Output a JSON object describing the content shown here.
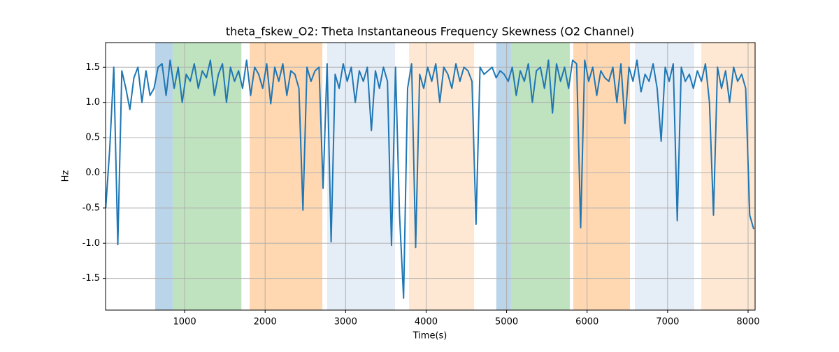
{
  "chart_data": {
    "type": "line",
    "title": "theta_fskew_O2: Theta Instantaneous Frequency Skewness (O2 Channel)",
    "x_label": "Time(s)",
    "y_label": "Hz",
    "xlim": [
      18,
      8087
    ],
    "ylim": [
      -1.95,
      1.85
    ],
    "xticks": [
      1000,
      2000,
      3000,
      4000,
      5000,
      6000,
      7000,
      8000
    ],
    "yticks": [
      -1.5,
      {
        "value": -1,
        "label": "-1.0"
      },
      -0.5,
      {
        "value": 0,
        "label": "0.0"
      },
      0.5,
      {
        "value": 1,
        "label": "1.0"
      },
      1.5
    ],
    "grid": true,
    "spans": [
      {
        "x": [
          635,
          852
        ],
        "color": "#bad4e9"
      },
      {
        "x": [
          852,
          1705
        ],
        "color": "#c0e3bf"
      },
      {
        "x": [
          1808,
          2711
        ],
        "color": "#ffd7b1"
      },
      {
        "x": [
          2771,
          3614
        ],
        "color": "#e5edf7"
      },
      {
        "x": [
          3788,
          4596
        ],
        "color": "#ffe8d3"
      },
      {
        "x": [
          4872,
          5055
        ],
        "color": "#bad4e9"
      },
      {
        "x": [
          5055,
          5785
        ],
        "color": "#c0e3bf"
      },
      {
        "x": [
          5829,
          6532
        ],
        "color": "#ffd7b1"
      },
      {
        "x": [
          6593,
          7331
        ],
        "color": "#e5edf7"
      },
      {
        "x": [
          7418,
          8087
        ],
        "color": "#ffe8d3"
      }
    ],
    "x": [
      20,
      70,
      120,
      170,
      220,
      270,
      320,
      370,
      420,
      470,
      520,
      570,
      620,
      670,
      720,
      770,
      820,
      870,
      920,
      970,
      1020,
      1070,
      1120,
      1170,
      1220,
      1270,
      1320,
      1370,
      1420,
      1470,
      1520,
      1570,
      1620,
      1670,
      1720,
      1770,
      1820,
      1870,
      1920,
      1970,
      2020,
      2070,
      2120,
      2170,
      2220,
      2270,
      2320,
      2370,
      2420,
      2470,
      2520,
      2570,
      2620,
      2670,
      2720,
      2770,
      2820,
      2870,
      2920,
      2970,
      3020,
      3070,
      3120,
      3170,
      3220,
      3270,
      3320,
      3370,
      3420,
      3470,
      3520,
      3570,
      3620,
      3670,
      3720,
      3770,
      3820,
      3870,
      3920,
      3970,
      4020,
      4070,
      4120,
      4170,
      4220,
      4270,
      4320,
      4370,
      4420,
      4470,
      4520,
      4570,
      4620,
      4670,
      4720,
      4770,
      4820,
      4870,
      4920,
      4970,
      5020,
      5070,
      5120,
      5170,
      5220,
      5270,
      5320,
      5370,
      5420,
      5470,
      5520,
      5570,
      5620,
      5670,
      5720,
      5770,
      5820,
      5870,
      5920,
      5970,
      6020,
      6070,
      6120,
      6170,
      6220,
      6270,
      6320,
      6370,
      6420,
      6470,
      6520,
      6570,
      6620,
      6670,
      6720,
      6770,
      6820,
      6870,
      6920,
      6970,
      7020,
      7070,
      7120,
      7170,
      7220,
      7270,
      7320,
      7370,
      7420,
      7470,
      7520,
      7570,
      7620,
      7670,
      7720,
      7770,
      7820,
      7870,
      7920,
      7970,
      8020,
      8070
    ],
    "series": [
      {
        "name": "theta_fskew_O2",
        "color": "#1f77b4",
        "values": [
          -0.5,
          0.35,
          1.5,
          -1.02,
          1.45,
          1.2,
          0.9,
          1.35,
          1.5,
          1.0,
          1.45,
          1.1,
          1.2,
          1.5,
          1.55,
          1.1,
          1.6,
          1.2,
          1.5,
          1.0,
          1.4,
          1.3,
          1.55,
          1.2,
          1.45,
          1.35,
          1.6,
          1.1,
          1.4,
          1.55,
          1.0,
          1.5,
          1.3,
          1.45,
          1.2,
          1.6,
          1.1,
          1.5,
          1.4,
          1.2,
          1.55,
          0.98,
          1.5,
          1.3,
          1.55,
          1.1,
          1.45,
          1.4,
          1.2,
          -0.53,
          1.5,
          1.3,
          1.45,
          1.5,
          -0.22,
          1.55,
          -0.98,
          1.4,
          1.2,
          1.55,
          1.3,
          1.5,
          1.0,
          1.45,
          1.3,
          1.5,
          0.6,
          1.45,
          1.2,
          1.5,
          1.3,
          -1.03,
          1.5,
          -0.6,
          -1.78,
          1.2,
          1.55,
          -1.06,
          1.4,
          1.2,
          1.5,
          1.3,
          1.55,
          1.0,
          1.5,
          1.4,
          1.2,
          1.55,
          1.3,
          1.5,
          1.45,
          1.3,
          -0.73,
          1.5,
          1.4,
          1.45,
          1.5,
          1.35,
          1.45,
          1.4,
          1.3,
          1.5,
          1.1,
          1.45,
          1.3,
          1.55,
          1.0,
          1.45,
          1.5,
          1.2,
          1.6,
          0.85,
          1.55,
          1.3,
          1.5,
          1.2,
          1.6,
          1.55,
          -0.78,
          1.6,
          1.3,
          1.5,
          1.1,
          1.45,
          1.35,
          1.3,
          1.5,
          1.0,
          1.55,
          0.7,
          1.5,
          1.3,
          1.6,
          1.15,
          1.4,
          1.3,
          1.55,
          1.2,
          0.45,
          1.5,
          1.3,
          1.55,
          -0.68,
          1.5,
          1.3,
          1.4,
          1.2,
          1.45,
          1.3,
          1.55,
          1.0,
          -0.6,
          1.5,
          1.2,
          1.45,
          1.0,
          1.5,
          1.3,
          1.4,
          1.2,
          -0.6,
          -0.8
        ]
      }
    ]
  }
}
